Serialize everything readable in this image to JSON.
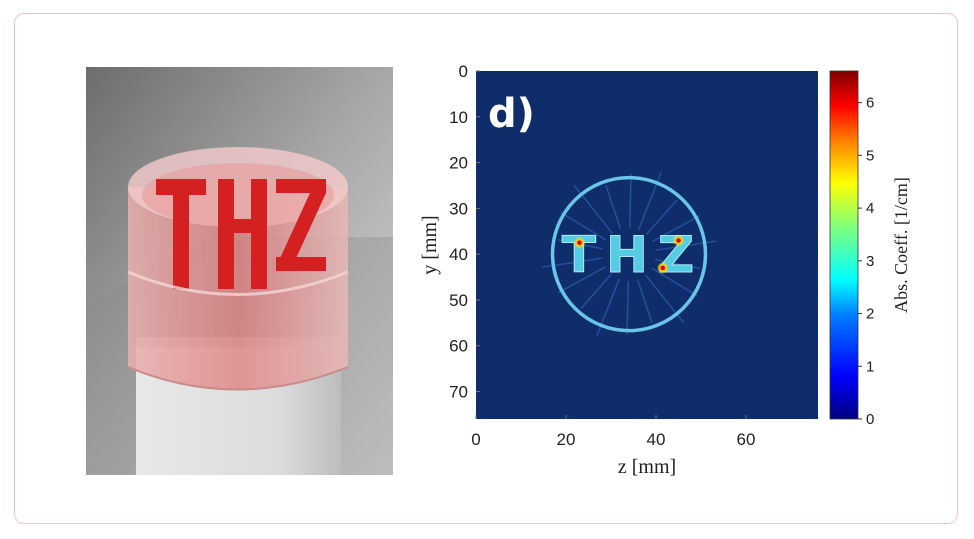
{
  "photo": {
    "caption_letters": "THZ"
  },
  "chart_data": {
    "type": "heatmap",
    "panel_label": "d)",
    "xlabel": "z [mm]",
    "ylabel": "y [mm]",
    "xlim": [
      0,
      76
    ],
    "ylim": [
      0,
      76
    ],
    "y_axis_inverted": true,
    "xticks": [
      0,
      20,
      40,
      60
    ],
    "yticks": [
      0,
      10,
      20,
      30,
      40,
      50,
      60,
      70
    ],
    "image_text": "THZ",
    "ring": {
      "center_z": 34,
      "center_y": 40,
      "radius": 17
    },
    "hotspots": [
      {
        "z": 23,
        "y": 37.5,
        "value": 5
      },
      {
        "z": 45,
        "y": 37,
        "value": 6
      },
      {
        "z": 41.5,
        "y": 43,
        "value": 6
      }
    ],
    "colorbar": {
      "label": "Abs. Coeff. [1/cm]",
      "min": 0,
      "max": 6.6,
      "ticks": [
        0,
        1,
        2,
        3,
        4,
        5,
        6
      ],
      "colormap": "jet",
      "colors": [
        "#00007f",
        "#0000ff",
        "#007fff",
        "#00ffff",
        "#7fff7f",
        "#ffff00",
        "#ff7f00",
        "#ff0000",
        "#7f0000"
      ]
    },
    "background_color": "#0f2d6b"
  }
}
